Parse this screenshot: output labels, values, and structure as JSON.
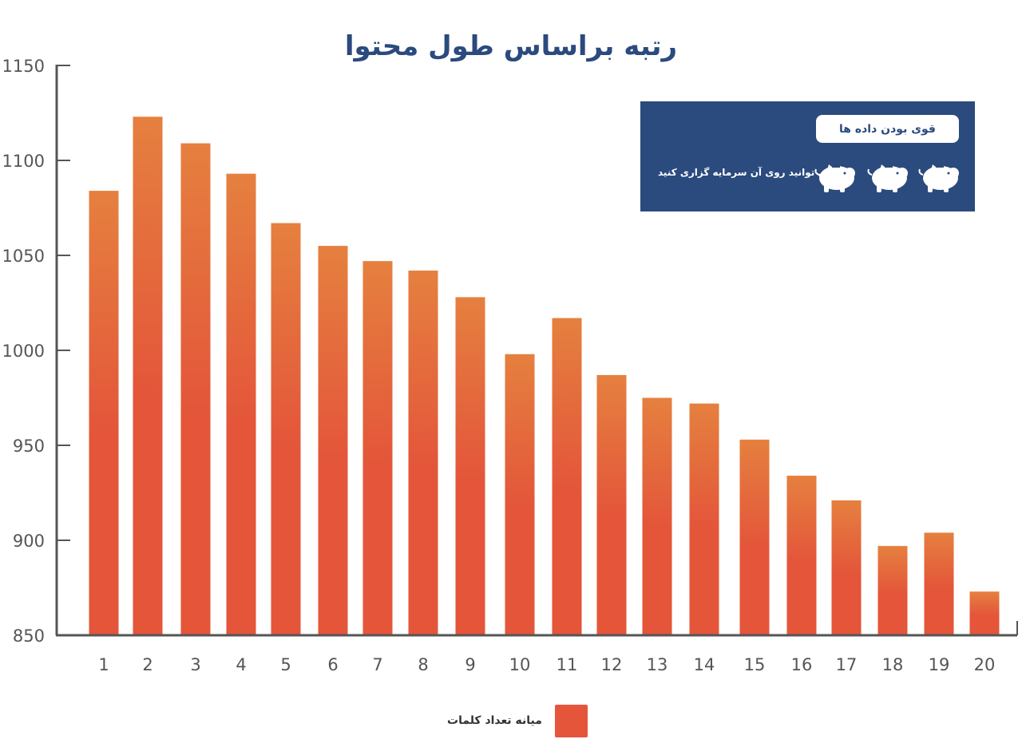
{
  "chart_data": {
    "type": "bar",
    "title": "رتبه براساس طول محتوا",
    "categories": [
      "1",
      "2",
      "3",
      "4",
      "5",
      "6",
      "7",
      "8",
      "9",
      "10",
      "11",
      "12",
      "13",
      "14",
      "15",
      "16",
      "17",
      "18",
      "19",
      "20"
    ],
    "series": [
      {
        "name": "میانه تعداد کلمات",
        "values": [
          1084,
          1123,
          1109,
          1093,
          1067,
          1055,
          1047,
          1042,
          1028,
          998,
          1017,
          987,
          975,
          972,
          953,
          934,
          921,
          897,
          904,
          873
        ]
      }
    ],
    "yticks": [
      850,
      900,
      950,
      1000,
      1050,
      1100,
      1150
    ],
    "ylim": [
      850,
      1150
    ],
    "grid": false,
    "legend_position": "bottom",
    "colors": {
      "bar_top": "#e5803f",
      "bar_bottom": "#e4553a",
      "axis": "#555555",
      "title": "#2b4a7e"
    }
  },
  "promo": {
    "badge": "قوی بودن داده ها",
    "text": "می توانید روی آن سرمایه گزاری کنید",
    "icons": [
      "piggy-bank-icon",
      "piggy-bank-icon",
      "piggy-bank-icon"
    ],
    "background": "#2b4a7e"
  }
}
